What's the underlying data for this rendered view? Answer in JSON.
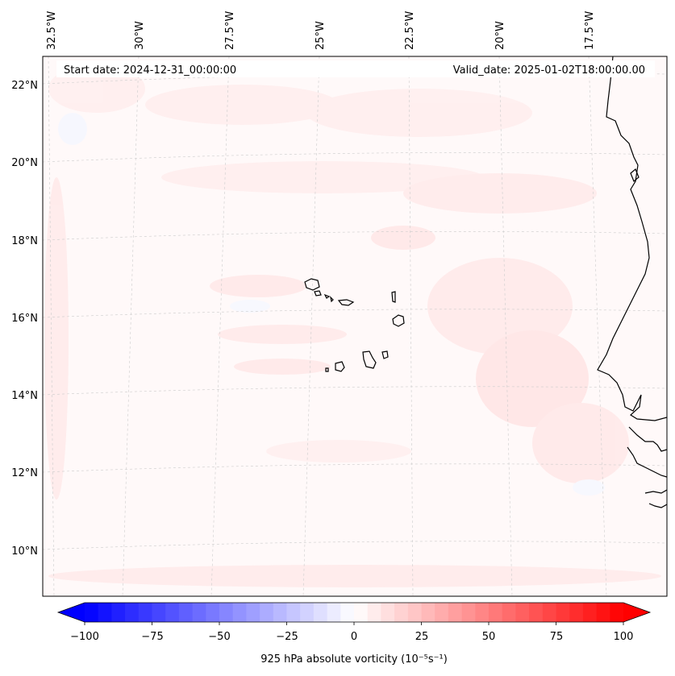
{
  "map": {
    "start_date": "Start date: 2024-12-31_00:00:00",
    "valid_date": "Valid_date: 2025-01-02T18:00:00.00",
    "longitude_labels": [
      "32.5°W",
      "30°W",
      "27.5°W",
      "25°W",
      "22.5°W",
      "20°W",
      "17.5°W"
    ],
    "latitude_labels": [
      "22°N",
      "20°N",
      "18°N",
      "16°N",
      "14°N",
      "12°N",
      "10°N"
    ],
    "gridlines": true,
    "projection": "conic"
  },
  "colorbar": {
    "label": "925 hPa absolute vorticity (10⁻⁵s⁻¹)",
    "ticks": [
      "−100",
      "−75",
      "−50",
      "−25",
      "0",
      "25",
      "50",
      "75",
      "100"
    ],
    "range": [
      -100,
      100
    ],
    "step": 5,
    "extend": "both",
    "colormap": "bwr",
    "colors": {
      "low": "#0000ff",
      "mid": "#ffffff",
      "high": "#ff0000"
    }
  }
}
